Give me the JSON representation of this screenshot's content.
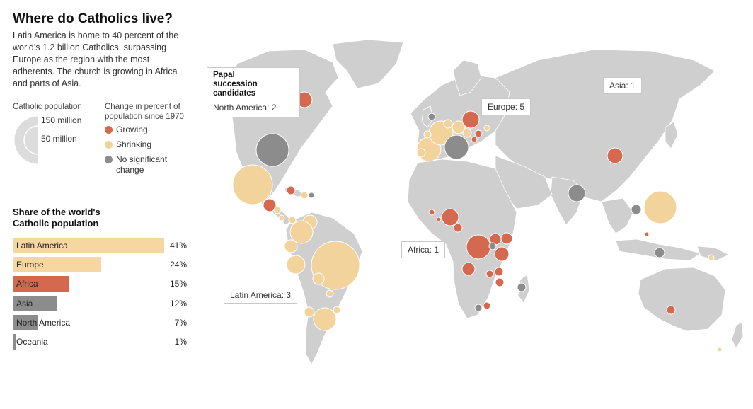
{
  "title": "Where do Catholics live?",
  "intro": "Latin America is home to 40 percent of the world's 1.2 billion Catholics, surpassing Europe as the region with the most adherents. The church is growing in Africa and parts of Asia.",
  "legend": {
    "size_title": "Catholic population",
    "size_large": "150 million",
    "size_small": "50 million",
    "change_title": "Change in percent of population since 1970",
    "items": [
      {
        "label": "Growing",
        "color": "#d4694f"
      },
      {
        "label": "Shrinking",
        "color": "#f3d39c"
      },
      {
        "label": "No significant change",
        "color": "#8c8c8c"
      }
    ]
  },
  "share": {
    "title": "Share of the world's Catholic population",
    "rows": [
      {
        "label": "Latin America",
        "value": "41%",
        "pct": 41,
        "color": "#f6d7a2"
      },
      {
        "label": "Europe",
        "value": "24%",
        "pct": 24,
        "color": "#f6d7a2"
      },
      {
        "label": "Africa",
        "value": "15%",
        "pct": 15,
        "color": "#d4694f"
      },
      {
        "label": "Asia",
        "value": "12%",
        "pct": 12,
        "color": "#8c8c8c"
      },
      {
        "label": "North America",
        "value": "7%",
        "pct": 7,
        "color": "#8c8c8c"
      },
      {
        "label": "Oceania",
        "value": "1%",
        "pct": 1,
        "color": "#8c8c8c"
      }
    ]
  },
  "papal": {
    "heading": "Papal\nsuccession\ncandidates",
    "north_america": "North America: 2",
    "europe": "Europe: 5",
    "asia": "Asia: 1",
    "africa": "Africa: 1",
    "latin_america": "Latin America: 3"
  },
  "colors": {
    "growing": "#d4694f",
    "shrinking": "#f3d39c",
    "no_change": "#8c8c8c",
    "land": "#cfcfcf"
  }
}
